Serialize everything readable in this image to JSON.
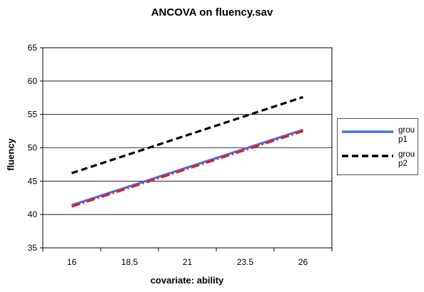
{
  "chart_data": {
    "type": "line",
    "title": "ANCOVA on fluency.sav",
    "xlabel": "covariate: ability",
    "ylabel": "fluency",
    "x": [
      16,
      18.5,
      21,
      23.5,
      26
    ],
    "x_tick_labels": [
      "16",
      "18.5",
      "21",
      "23.5",
      "26"
    ],
    "ylim": [
      35,
      65
    ],
    "y_ticks": [
      35,
      40,
      45,
      50,
      55,
      60,
      65
    ],
    "grid": true,
    "legend_position": "right",
    "series": [
      {
        "name": "group1",
        "legend_label": "grou p1",
        "x": [
          16,
          26
        ],
        "y": [
          41.4,
          52.7
        ],
        "color": "#4472e8",
        "style": "solid"
      },
      {
        "name": "group1 (reference)",
        "legend_label": "",
        "x": [
          16,
          26
        ],
        "y": [
          41.2,
          52.5
        ],
        "color": "#e01c24",
        "style": "dashdot"
      },
      {
        "name": "group2",
        "legend_label": "grou p2",
        "x": [
          16,
          26
        ],
        "y": [
          46.2,
          57.6
        ],
        "color": "#000000",
        "style": "dashed"
      }
    ]
  }
}
